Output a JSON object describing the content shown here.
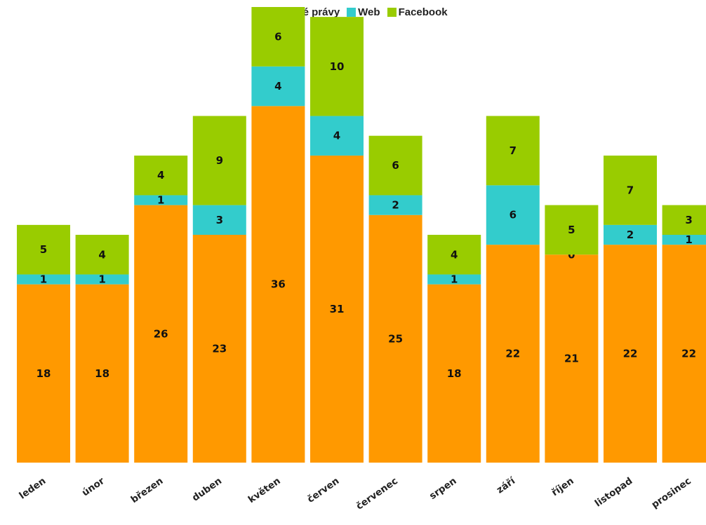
{
  "chart_data": {
    "type": "bar",
    "stacked": true,
    "categories": [
      "leden",
      "únor",
      "březen",
      "duben",
      "květen",
      "červen",
      "červenec",
      "srpen",
      "září",
      "říjen",
      "listopad",
      "prosinec"
    ],
    "series": [
      {
        "name": "Tiskové právy",
        "color": "#FF9900",
        "values": [
          18,
          18,
          26,
          23,
          36,
          31,
          25,
          18,
          22,
          21,
          22,
          22
        ]
      },
      {
        "name": "Web",
        "color": "#33CCCC",
        "values": [
          1,
          1,
          1,
          3,
          4,
          4,
          2,
          1,
          6,
          0,
          2,
          1
        ]
      },
      {
        "name": "Facebook",
        "color": "#99CC00",
        "values": [
          5,
          4,
          4,
          9,
          6,
          10,
          6,
          4,
          7,
          5,
          7,
          3
        ]
      }
    ],
    "data_labels": true,
    "legend_position": "top",
    "xlabel": "",
    "ylabel": "",
    "ylim": [
      0,
      46
    ],
    "grid": false
  }
}
